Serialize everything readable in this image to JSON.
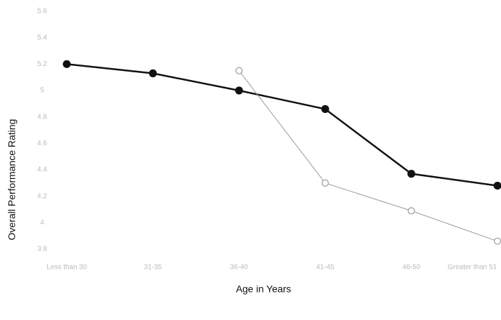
{
  "chart_data": {
    "type": "line",
    "x_label": "Age in Years",
    "y_label": "Overall Performance Rating",
    "categories": [
      "Less than 30",
      "31-35",
      "36-40",
      "41-45",
      "46-50",
      "Greater than 51"
    ],
    "series": [
      {
        "color": "#111111",
        "marker": "filled",
        "values": [
          5.2,
          5.13,
          5.0,
          4.86,
          4.37,
          4.28
        ]
      },
      {
        "color": "#999999",
        "marker": "hollow",
        "values": [
          null,
          null,
          5.15,
          4.3,
          4.09,
          3.86
        ]
      }
    ],
    "ylim": [
      3.8,
      5.6
    ],
    "yticks": [
      3.8,
      4,
      4.2,
      4.4,
      4.6,
      4.8,
      5,
      5.2,
      5.4,
      5.6
    ],
    "grid": false
  }
}
